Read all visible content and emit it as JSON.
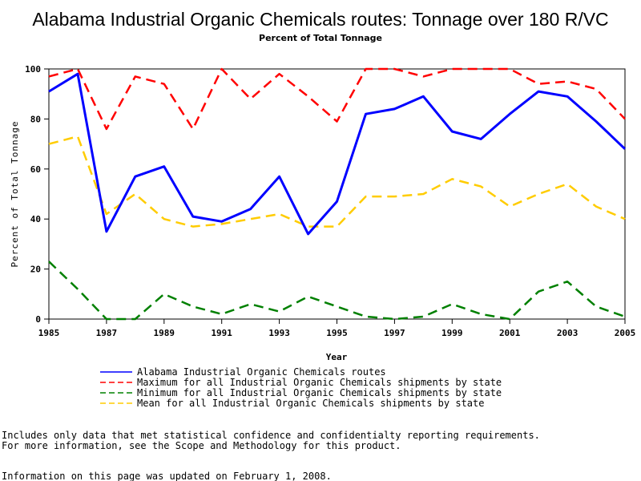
{
  "chart_data": {
    "type": "line",
    "title": "Alabama Industrial Organic Chemicals routes: Tonnage over 180 R/VC",
    "subtitle": "Percent of Total Tonnage",
    "xlabel": "Year",
    "ylabel": "Percent of Total Tonnage",
    "xlim": [
      1985,
      2005
    ],
    "ylim": [
      0,
      100
    ],
    "x": [
      1985,
      1986,
      1987,
      1988,
      1989,
      1990,
      1991,
      1992,
      1993,
      1994,
      1995,
      1996,
      1997,
      1998,
      1999,
      2000,
      2001,
      2002,
      2003,
      2004,
      2005
    ],
    "x_ticks": [
      "1985",
      "1987",
      "1989",
      "1991",
      "1993",
      "1995",
      "1997",
      "1999",
      "2001",
      "2003",
      "2005"
    ],
    "y_ticks": [
      "0",
      "20",
      "40",
      "60",
      "80",
      "100"
    ],
    "grid": false,
    "legend_position": "bottom",
    "series": [
      {
        "name": "Alabama Industrial Organic Chemicals routes",
        "color": "#0000ff",
        "dash": "solid",
        "values": [
          91,
          98,
          35,
          57,
          61,
          41,
          39,
          44,
          57,
          34,
          47,
          82,
          84,
          89,
          75,
          72,
          82,
          91,
          89,
          79,
          68
        ]
      },
      {
        "name": "Maximum for all Industrial Organic Chemicals shipments by state",
        "color": "#ff0000",
        "dash": "dashed",
        "values": [
          97,
          100,
          76,
          97,
          94,
          76,
          100,
          88,
          98,
          89,
          79,
          100,
          100,
          97,
          100,
          100,
          100,
          94,
          95,
          92,
          80
        ]
      },
      {
        "name": "Minimum for all Industrial Organic Chemicals shipments by state",
        "color": "#008000",
        "dash": "dashed",
        "values": [
          23,
          12,
          0,
          0,
          10,
          5,
          2,
          6,
          3,
          9,
          5,
          1,
          0,
          1,
          6,
          2,
          0,
          11,
          15,
          5,
          1
        ]
      },
      {
        "name": "Mean for all Industrial Organic Chemicals shipments by state",
        "color": "#ffcc00",
        "dash": "dashed",
        "values": [
          70,
          73,
          42,
          50,
          40,
          37,
          38,
          40,
          42,
          37,
          37,
          49,
          49,
          50,
          56,
          53,
          45,
          50,
          54,
          45,
          40
        ]
      }
    ]
  },
  "footnotes": [
    "Includes only data that met statistical confidence and confidentialty reporting requirements.",
    "For more information, see the Scope and Methodology for this product.",
    "Information on this page was updated on February 1, 2008."
  ]
}
